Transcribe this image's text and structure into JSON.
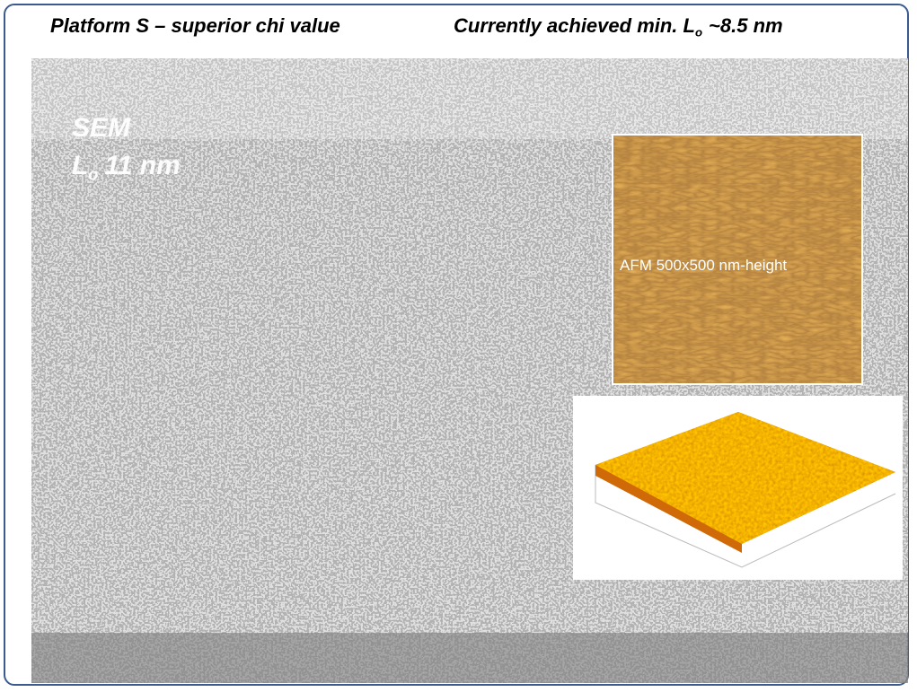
{
  "header": {
    "left": "Platform S – superior chi value",
    "right": {
      "text": "Currently achieved min. L",
      "sub": "o",
      "tail": "~8.5 nm"
    }
  },
  "sem": {
    "label": "SEM",
    "lo": "L",
    "sub": "o",
    "tail": "11 nm"
  },
  "afm": {
    "label": "AFM 500x500 nm-height"
  }
}
